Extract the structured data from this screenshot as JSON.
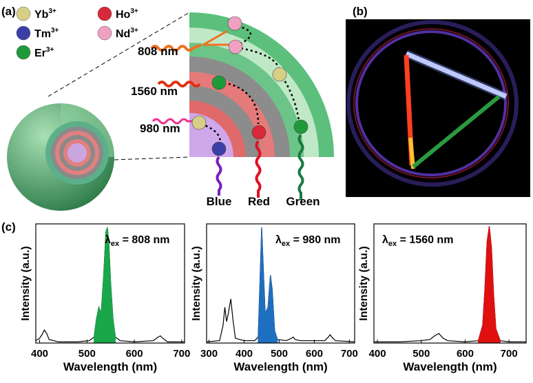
{
  "panel_labels": [
    "(a)",
    "(b)",
    "(c)"
  ],
  "legend": [
    {
      "ion": "Yb",
      "charge": "3+",
      "color": "#d8cf86"
    },
    {
      "ion": "Ho",
      "charge": "3+",
      "color": "#d8283a"
    },
    {
      "ion": "Tm",
      "charge": "3+",
      "color": "#3a3fa8"
    },
    {
      "ion": "Nd",
      "charge": "3+",
      "color": "#f0a0c0"
    },
    {
      "ion": "Er",
      "charge": "3+",
      "color": "#1f9a3a"
    }
  ],
  "excitation": [
    "808 nm",
    "1560 nm",
    "980 nm"
  ],
  "emission": [
    {
      "label": "Blue",
      "color": "#7a1fc0"
    },
    {
      "label": "Red",
      "color": "#e01020"
    },
    {
      "label": "Green",
      "color": "#1a7a40"
    }
  ],
  "chart_data": [
    {
      "type": "line",
      "annotation": {
        "symbol": "λ",
        "sub": "ex",
        "text": " = 808 nm"
      },
      "x_label": "Wavelength (nm)",
      "y_label": "Intensity (a.u.)",
      "xlim": [
        392,
        706
      ],
      "ylim": [
        0,
        1
      ],
      "xticks": [
        400,
        500,
        600,
        700
      ],
      "series": [
        {
          "kind": "line",
          "color": "#000000",
          "x": [
            392,
            400,
            405,
            410,
            415,
            420,
            440,
            480,
            505,
            515,
            520,
            525,
            530,
            535,
            540,
            543,
            546,
            550,
            555,
            560,
            570,
            600,
            640,
            650,
            655,
            660,
            670,
            706
          ],
          "values": [
            0.02,
            0.04,
            0.07,
            0.11,
            0.08,
            0.03,
            0.01,
            0.01,
            0.02,
            0.05,
            0.2,
            0.3,
            0.25,
            0.55,
            0.93,
            0.97,
            0.85,
            0.5,
            0.2,
            0.05,
            0.02,
            0.01,
            0.02,
            0.05,
            0.06,
            0.04,
            0.01,
            0.01
          ]
        },
        {
          "kind": "area",
          "color": "#1aa64a",
          "x": [
            515,
            520,
            525,
            530,
            535,
            540,
            543,
            546,
            550,
            555,
            560
          ],
          "values": [
            0.05,
            0.2,
            0.3,
            0.25,
            0.55,
            0.93,
            0.97,
            0.85,
            0.5,
            0.2,
            0.05
          ]
        }
      ]
    },
    {
      "type": "line",
      "annotation": {
        "symbol": "λ",
        "sub": "ex",
        "text": " = 980 nm"
      },
      "x_label": "Wavelength (nm)",
      "y_label": "Intensity (a.u.)",
      "xlim": [
        293,
        715
      ],
      "ylim": [
        0,
        1
      ],
      "xticks": [
        300,
        400,
        500,
        600,
        700
      ],
      "series": [
        {
          "kind": "line",
          "color": "#000000",
          "x": [
            293,
            330,
            340,
            345,
            350,
            355,
            362,
            368,
            375,
            400,
            430,
            440,
            445,
            450,
            455,
            460,
            468,
            475,
            480,
            487,
            495,
            520,
            535,
            540,
            545,
            560,
            630,
            640,
            645,
            650,
            660,
            715
          ],
          "values": [
            0.01,
            0.02,
            0.15,
            0.3,
            0.18,
            0.25,
            0.37,
            0.2,
            0.04,
            0.02,
            0.02,
            0.05,
            0.5,
            0.97,
            0.6,
            0.25,
            0.3,
            0.57,
            0.45,
            0.1,
            0.03,
            0.02,
            0.04,
            0.05,
            0.03,
            0.02,
            0.02,
            0.05,
            0.07,
            0.05,
            0.02,
            0.01
          ]
        },
        {
          "kind": "area",
          "color": "#1f6fc0",
          "x": [
            440,
            445,
            450,
            455,
            460,
            468,
            475,
            480,
            487,
            495
          ],
          "values": [
            0.05,
            0.5,
            0.97,
            0.6,
            0.25,
            0.3,
            0.57,
            0.45,
            0.1,
            0.03
          ]
        }
      ]
    },
    {
      "type": "line",
      "annotation": {
        "symbol": "λ",
        "sub": "ex",
        "text": " = 1560 nm"
      },
      "x_label": "Wavelength (nm)",
      "y_label": "Intensity (a.u.)",
      "xlim": [
        392,
        739
      ],
      "ylim": [
        0,
        1
      ],
      "xticks": [
        400,
        500,
        600,
        700
      ],
      "series": [
        {
          "kind": "line",
          "color": "#000000",
          "x": [
            392,
            450,
            500,
            520,
            530,
            540,
            550,
            560,
            600,
            630,
            640,
            645,
            650,
            655,
            660,
            665,
            670,
            680,
            700,
            739
          ],
          "values": [
            0.01,
            0.01,
            0.02,
            0.03,
            0.06,
            0.08,
            0.04,
            0.02,
            0.01,
            0.02,
            0.15,
            0.45,
            0.85,
            0.98,
            0.8,
            0.4,
            0.12,
            0.02,
            0.01,
            0.01
          ]
        },
        {
          "kind": "area",
          "color": "#e01010",
          "x": [
            630,
            640,
            645,
            650,
            655,
            660,
            665,
            670,
            680
          ],
          "values": [
            0.02,
            0.15,
            0.45,
            0.85,
            0.98,
            0.8,
            0.4,
            0.12,
            0.02
          ]
        }
      ]
    }
  ]
}
